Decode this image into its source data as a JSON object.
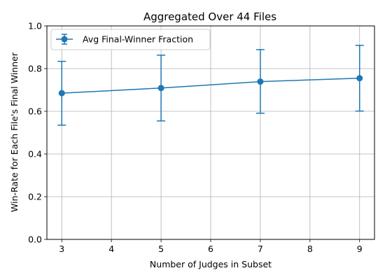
{
  "chart_data": {
    "type": "line",
    "title": "Aggregated Over 44 Files",
    "xlabel": "Number of Judges in Subset",
    "ylabel": "Win-Rate for Each File's Final Winner",
    "xlim": [
      2.7,
      9.3
    ],
    "ylim": [
      0.0,
      1.0
    ],
    "xticks": [
      "3",
      "4",
      "5",
      "6",
      "7",
      "8",
      "9"
    ],
    "yticks": [
      "0.0",
      "0.2",
      "0.4",
      "0.6",
      "0.8",
      "1.0"
    ],
    "grid": true,
    "legend_position": "upper-left",
    "series": [
      {
        "name": "Avg Final-Winner Fraction",
        "color": "#1f77b4",
        "x": [
          3,
          5,
          7,
          9
        ],
        "y": [
          0.685,
          0.709,
          0.739,
          0.755
        ],
        "yerr_low": [
          0.535,
          0.555,
          0.591,
          0.601
        ],
        "yerr_high": [
          0.834,
          0.863,
          0.889,
          0.909
        ]
      }
    ]
  }
}
